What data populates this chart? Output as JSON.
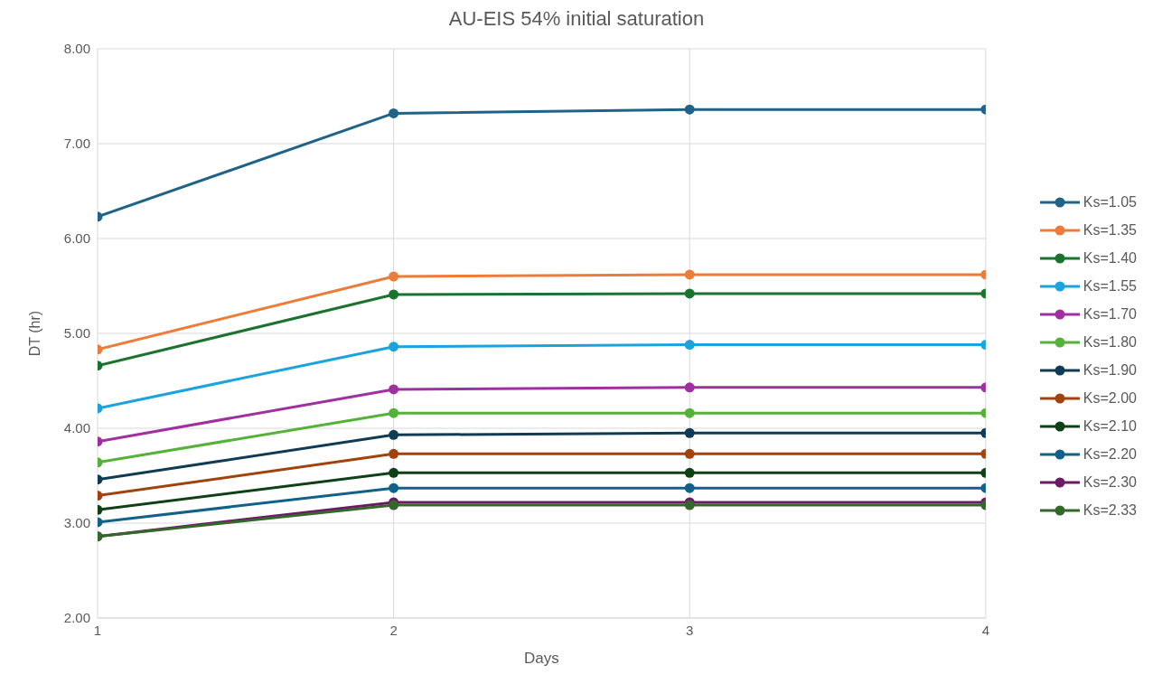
{
  "chart_data": {
    "type": "line",
    "title": "AU-EIS 54% initial saturation",
    "xlabel": "Days",
    "ylabel": "DT (hr)",
    "x": [
      1,
      2,
      3,
      4
    ],
    "xlim": [
      1,
      4
    ],
    "xticks": [
      1,
      2,
      3,
      4
    ],
    "ylim": [
      2,
      8
    ],
    "yticks": [
      {
        "value": 2,
        "label": "2.00"
      },
      {
        "value": 3,
        "label": "3.00"
      },
      {
        "value": 4,
        "label": "4.00"
      },
      {
        "value": 5,
        "label": "5.00"
      },
      {
        "value": 6,
        "label": "6.00"
      },
      {
        "value": 7,
        "label": "7.00"
      },
      {
        "value": 8,
        "label": "8.00"
      }
    ],
    "grid": true,
    "legend": "right",
    "marker": "circle",
    "line_style": "solid",
    "series": [
      {
        "name": "Ks=1.05",
        "color": "#1f6388",
        "values": [
          6.23,
          7.32,
          7.36,
          7.36
        ]
      },
      {
        "name": "Ks=1.35",
        "color": "#ec7c3a",
        "values": [
          4.83,
          5.6,
          5.62,
          5.62
        ]
      },
      {
        "name": "Ks=1.40",
        "color": "#1c7330",
        "values": [
          4.66,
          5.41,
          5.42,
          5.42
        ]
      },
      {
        "name": "Ks=1.55",
        "color": "#1aa3dc",
        "values": [
          4.21,
          4.86,
          4.88,
          4.88
        ]
      },
      {
        "name": "Ks=1.70",
        "color": "#a0309f",
        "values": [
          3.86,
          4.41,
          4.43,
          4.43
        ]
      },
      {
        "name": "Ks=1.80",
        "color": "#53b237",
        "values": [
          3.64,
          4.16,
          4.16,
          4.16
        ]
      },
      {
        "name": "Ks=1.90",
        "color": "#0f3b55",
        "values": [
          3.46,
          3.93,
          3.95,
          3.95
        ]
      },
      {
        "name": "Ks=2.00",
        "color": "#a0430f",
        "values": [
          3.29,
          3.73,
          3.73,
          3.73
        ]
      },
      {
        "name": "Ks=2.10",
        "color": "#0f4117",
        "values": [
          3.14,
          3.53,
          3.53,
          3.53
        ]
      },
      {
        "name": "Ks=2.20",
        "color": "#11618a",
        "values": [
          3.01,
          3.37,
          3.37,
          3.37
        ]
      },
      {
        "name": "Ks=2.30",
        "color": "#6c1a63",
        "values": [
          2.86,
          3.22,
          3.22,
          3.22
        ]
      },
      {
        "name": "Ks=2.33",
        "color": "#33682a",
        "values": [
          2.86,
          3.19,
          3.19,
          3.19
        ]
      }
    ]
  }
}
